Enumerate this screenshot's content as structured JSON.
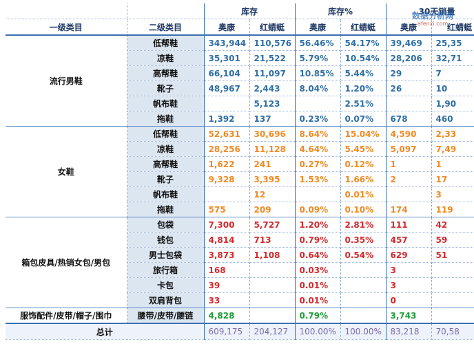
{
  "headers": {
    "level1": "一级类目",
    "level2": "二级类目",
    "stock": "库存",
    "stock_pct": "库存%",
    "sales30": "30天销量",
    "brand_a": "奥康",
    "brand_b": "红蜻蜓"
  },
  "watermark": {
    "text": "数据分析网",
    "sub": "afenxi.com"
  },
  "groups": [
    {
      "name": "流行男鞋",
      "color": "blue",
      "rows": [
        {
          "cat": "低帮鞋",
          "a": "343,944",
          "b": "110,576",
          "pa": "56.46%",
          "pb": "54.17%",
          "sa": "39,469",
          "sb": "25,35"
        },
        {
          "cat": "凉鞋",
          "a": "35,301",
          "b": "21,522",
          "pa": "5.79%",
          "pb": "10.54%",
          "sa": "28,206",
          "sb": "32,71"
        },
        {
          "cat": "高帮鞋",
          "a": "66,104",
          "b": "11,097",
          "pa": "10.85%",
          "pb": "5.44%",
          "sa": "29",
          "sb": "7"
        },
        {
          "cat": "靴子",
          "a": "48,967",
          "b": "2,443",
          "pa": "8.04%",
          "pb": "1.20%",
          "sa": "26",
          "sb": "10"
        },
        {
          "cat": "帆布鞋",
          "a": "",
          "b": "5,123",
          "pa": "",
          "pb": "2.51%",
          "sa": "",
          "sb": "1,90"
        },
        {
          "cat": "拖鞋",
          "a": "1,392",
          "b": "137",
          "pa": "0.23%",
          "pb": "0.07%",
          "sa": "678",
          "sb": "460"
        }
      ]
    },
    {
      "name": "女鞋",
      "color": "orange",
      "rows": [
        {
          "cat": "低帮鞋",
          "a": "52,631",
          "b": "30,696",
          "pa": "8.64%",
          "pb": "15.04%",
          "sa": "4,590",
          "sb": "2,33"
        },
        {
          "cat": "凉鞋",
          "a": "28,256",
          "b": "11,128",
          "pa": "4.64%",
          "pb": "5.45%",
          "sa": "5,097",
          "sb": "7,49"
        },
        {
          "cat": "高帮鞋",
          "a": "1,622",
          "b": "241",
          "pa": "0.27%",
          "pb": "0.12%",
          "sa": "1",
          "sb": "1"
        },
        {
          "cat": "靴子",
          "a": "9,328",
          "b": "3,395",
          "pa": "1.53%",
          "pb": "1.66%",
          "sa": "2",
          "sb": "17"
        },
        {
          "cat": "帆布鞋",
          "a": "",
          "b": "12",
          "pa": "",
          "pb": "0.01%",
          "sa": "",
          "sb": "3"
        },
        {
          "cat": "拖鞋",
          "a": "575",
          "b": "209",
          "pa": "0.09%",
          "pb": "0.10%",
          "sa": "174",
          "sb": "119"
        }
      ]
    },
    {
      "name": "箱包皮具/热销女包/男包",
      "color": "red",
      "rows": [
        {
          "cat": "包袋",
          "a": "7,300",
          "b": "5,727",
          "pa": "1.20%",
          "pb": "2.81%",
          "sa": "111",
          "sb": "42"
        },
        {
          "cat": "钱包",
          "a": "4,814",
          "b": "713",
          "pa": "0.79%",
          "pb": "0.35%",
          "sa": "457",
          "sb": "59"
        },
        {
          "cat": "男士包袋",
          "a": "3,873",
          "b": "1,108",
          "pa": "0.64%",
          "pb": "0.54%",
          "sa": "629",
          "sb": "51"
        },
        {
          "cat": "旅行箱",
          "a": "168",
          "b": "",
          "pa": "0.03%",
          "pb": "",
          "sa": "3",
          "sb": ""
        },
        {
          "cat": "卡包",
          "a": "39",
          "b": "",
          "pa": "0.01%",
          "pb": "",
          "sa": "3",
          "sb": ""
        },
        {
          "cat": "双肩背包",
          "a": "33",
          "b": "",
          "pa": "0.01%",
          "pb": "",
          "sa": "0",
          "sb": ""
        }
      ]
    },
    {
      "name": "服饰配件/皮带/帽子/围巾",
      "color": "green",
      "rows": [
        {
          "cat": "腰带/皮带/腰链",
          "a": "4,828",
          "b": "",
          "pa": "0.79%",
          "pb": "",
          "sa": "3,743",
          "sb": ""
        }
      ]
    }
  ],
  "total": {
    "label": "总计",
    "a": "609,175",
    "b": "204,127",
    "pa": "100.00%",
    "pb": "100.00%",
    "sa": "83,218",
    "sb": "70,58"
  }
}
